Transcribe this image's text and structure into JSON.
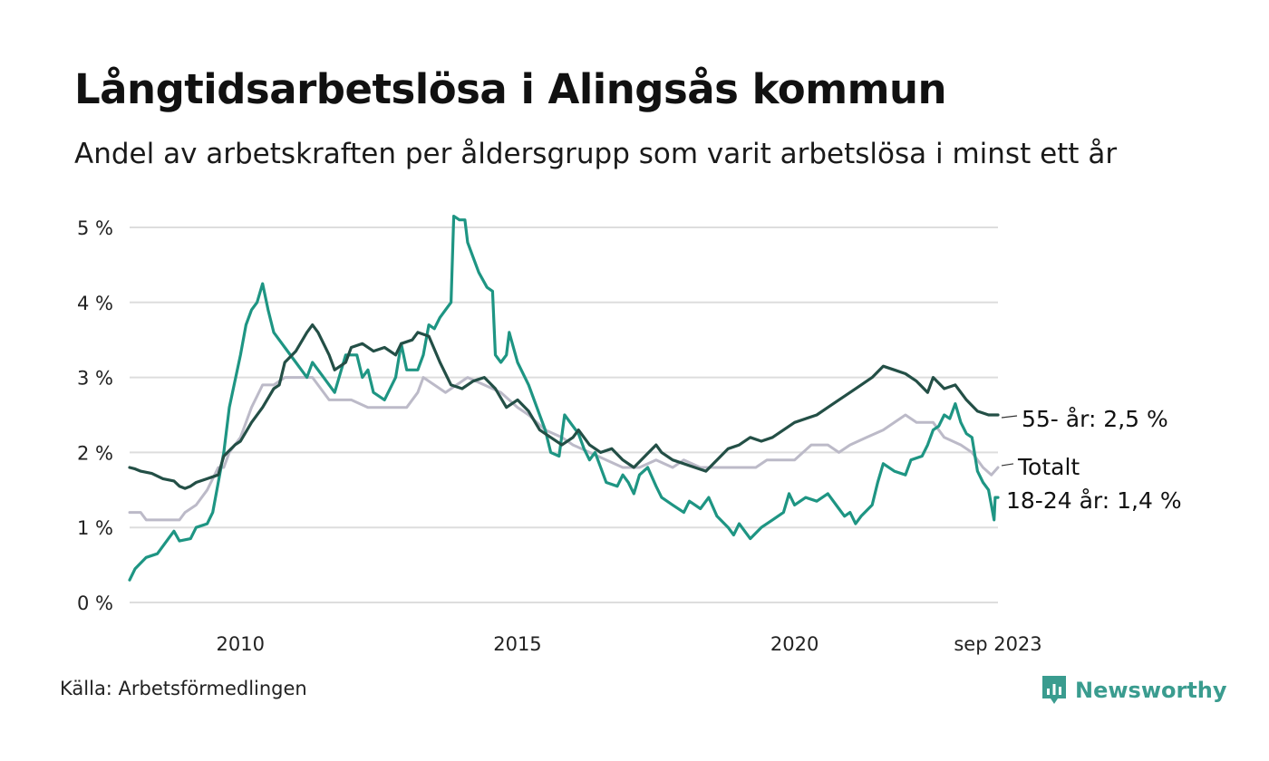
{
  "header": {
    "title": "Långtidsarbetslösa i Alingsås kommun",
    "subtitle": "Andel av arbetskraften per åldersgrupp som varit arbetslösa i minst ett år"
  },
  "footer": {
    "source": "Källa: Arbetsförmedlingen",
    "brand": "Newsworthy"
  },
  "colors": {
    "young": "#1e9583",
    "old": "#234f46",
    "total": "#bcbac8",
    "grid": "#dddddd",
    "brand": "#3a9c8f"
  },
  "chart_data": {
    "type": "line",
    "title": "Långtidsarbetslösa i Alingsås kommun",
    "xlabel": "",
    "ylabel": "",
    "xlim": [
      2008.0,
      2023.67
    ],
    "ylim": [
      0,
      5
    ],
    "yticks": [
      {
        "value": 0,
        "label": "0 %"
      },
      {
        "value": 1,
        "label": "1 %"
      },
      {
        "value": 2,
        "label": "2 %"
      },
      {
        "value": 3,
        "label": "3 %"
      },
      {
        "value": 4,
        "label": "4 %"
      },
      {
        "value": 5,
        "label": "5 %"
      }
    ],
    "xticks": [
      {
        "value": 2010,
        "label": "2010"
      },
      {
        "value": 2015,
        "label": "2015"
      },
      {
        "value": 2020,
        "label": "2020"
      },
      {
        "value": 2023.67,
        "label": "sep 2023"
      }
    ],
    "grid": true,
    "series": [
      {
        "key": "total",
        "name": "Totalt",
        "end_label": "Totalt",
        "color": "#bcbac8",
        "points": [
          [
            2008.0,
            1.2
          ],
          [
            2008.2,
            1.2
          ],
          [
            2008.3,
            1.1
          ],
          [
            2008.6,
            1.1
          ],
          [
            2008.9,
            1.1
          ],
          [
            2009.0,
            1.2
          ],
          [
            2009.2,
            1.3
          ],
          [
            2009.4,
            1.5
          ],
          [
            2009.6,
            1.8
          ],
          [
            2009.7,
            1.8
          ],
          [
            2009.8,
            2.0
          ],
          [
            2010.0,
            2.2
          ],
          [
            2010.2,
            2.6
          ],
          [
            2010.4,
            2.9
          ],
          [
            2010.6,
            2.9
          ],
          [
            2010.8,
            3.0
          ],
          [
            2011.0,
            3.0
          ],
          [
            2011.3,
            3.0
          ],
          [
            2011.6,
            2.7
          ],
          [
            2012.0,
            2.7
          ],
          [
            2012.3,
            2.6
          ],
          [
            2012.7,
            2.6
          ],
          [
            2013.0,
            2.6
          ],
          [
            2013.2,
            2.8
          ],
          [
            2013.3,
            3.0
          ],
          [
            2013.5,
            2.9
          ],
          [
            2013.7,
            2.8
          ],
          [
            2013.9,
            2.9
          ],
          [
            2014.1,
            3.0
          ],
          [
            2014.4,
            2.9
          ],
          [
            2014.7,
            2.8
          ],
          [
            2015.0,
            2.6
          ],
          [
            2015.2,
            2.5
          ],
          [
            2015.5,
            2.3
          ],
          [
            2015.8,
            2.2
          ],
          [
            2016.0,
            2.1
          ],
          [
            2016.3,
            2.0
          ],
          [
            2016.6,
            1.9
          ],
          [
            2016.9,
            1.8
          ],
          [
            2017.2,
            1.8
          ],
          [
            2017.5,
            1.9
          ],
          [
            2017.8,
            1.8
          ],
          [
            2018.0,
            1.9
          ],
          [
            2018.3,
            1.8
          ],
          [
            2018.6,
            1.8
          ],
          [
            2019.0,
            1.8
          ],
          [
            2019.3,
            1.8
          ],
          [
            2019.5,
            1.9
          ],
          [
            2019.8,
            1.9
          ],
          [
            2020.0,
            1.9
          ],
          [
            2020.3,
            2.1
          ],
          [
            2020.6,
            2.1
          ],
          [
            2020.8,
            2.0
          ],
          [
            2021.0,
            2.1
          ],
          [
            2021.3,
            2.2
          ],
          [
            2021.6,
            2.3
          ],
          [
            2021.8,
            2.4
          ],
          [
            2022.0,
            2.5
          ],
          [
            2022.2,
            2.4
          ],
          [
            2022.5,
            2.4
          ],
          [
            2022.7,
            2.2
          ],
          [
            2023.0,
            2.1
          ],
          [
            2023.2,
            2.0
          ],
          [
            2023.4,
            1.8
          ],
          [
            2023.55,
            1.7
          ],
          [
            2023.67,
            1.8
          ]
        ]
      },
      {
        "key": "old",
        "name": "55- år",
        "end_label": "55- år: 2,5 %",
        "color": "#234f46",
        "points": [
          [
            2008.0,
            1.8
          ],
          [
            2008.1,
            1.78
          ],
          [
            2008.2,
            1.75
          ],
          [
            2008.4,
            1.72
          ],
          [
            2008.6,
            1.65
          ],
          [
            2008.8,
            1.62
          ],
          [
            2008.9,
            1.55
          ],
          [
            2009.0,
            1.52
          ],
          [
            2009.1,
            1.55
          ],
          [
            2009.2,
            1.6
          ],
          [
            2009.4,
            1.65
          ],
          [
            2009.6,
            1.7
          ],
          [
            2009.7,
            1.95
          ],
          [
            2009.9,
            2.1
          ],
          [
            2010.0,
            2.15
          ],
          [
            2010.2,
            2.4
          ],
          [
            2010.4,
            2.6
          ],
          [
            2010.6,
            2.85
          ],
          [
            2010.7,
            2.9
          ],
          [
            2010.8,
            3.2
          ],
          [
            2011.0,
            3.35
          ],
          [
            2011.2,
            3.6
          ],
          [
            2011.3,
            3.7
          ],
          [
            2011.4,
            3.6
          ],
          [
            2011.6,
            3.3
          ],
          [
            2011.7,
            3.1
          ],
          [
            2011.9,
            3.2
          ],
          [
            2012.0,
            3.4
          ],
          [
            2012.2,
            3.45
          ],
          [
            2012.4,
            3.35
          ],
          [
            2012.6,
            3.4
          ],
          [
            2012.8,
            3.3
          ],
          [
            2012.9,
            3.45
          ],
          [
            2013.1,
            3.5
          ],
          [
            2013.2,
            3.6
          ],
          [
            2013.4,
            3.55
          ],
          [
            2013.6,
            3.2
          ],
          [
            2013.8,
            2.9
          ],
          [
            2014.0,
            2.85
          ],
          [
            2014.2,
            2.95
          ],
          [
            2014.4,
            3.0
          ],
          [
            2014.6,
            2.85
          ],
          [
            2014.8,
            2.6
          ],
          [
            2015.0,
            2.7
          ],
          [
            2015.2,
            2.55
          ],
          [
            2015.4,
            2.3
          ],
          [
            2015.6,
            2.2
          ],
          [
            2015.8,
            2.1
          ],
          [
            2016.0,
            2.2
          ],
          [
            2016.1,
            2.3
          ],
          [
            2016.3,
            2.1
          ],
          [
            2016.5,
            2.0
          ],
          [
            2016.7,
            2.05
          ],
          [
            2016.9,
            1.9
          ],
          [
            2017.1,
            1.8
          ],
          [
            2017.3,
            1.95
          ],
          [
            2017.5,
            2.1
          ],
          [
            2017.6,
            2.0
          ],
          [
            2017.8,
            1.9
          ],
          [
            2018.0,
            1.85
          ],
          [
            2018.2,
            1.8
          ],
          [
            2018.4,
            1.75
          ],
          [
            2018.6,
            1.9
          ],
          [
            2018.8,
            2.05
          ],
          [
            2019.0,
            2.1
          ],
          [
            2019.2,
            2.2
          ],
          [
            2019.4,
            2.15
          ],
          [
            2019.6,
            2.2
          ],
          [
            2019.8,
            2.3
          ],
          [
            2020.0,
            2.4
          ],
          [
            2020.2,
            2.45
          ],
          [
            2020.4,
            2.5
          ],
          [
            2020.6,
            2.6
          ],
          [
            2020.8,
            2.7
          ],
          [
            2021.0,
            2.8
          ],
          [
            2021.2,
            2.9
          ],
          [
            2021.4,
            3.0
          ],
          [
            2021.6,
            3.15
          ],
          [
            2021.8,
            3.1
          ],
          [
            2022.0,
            3.05
          ],
          [
            2022.2,
            2.95
          ],
          [
            2022.4,
            2.8
          ],
          [
            2022.5,
            3.0
          ],
          [
            2022.7,
            2.85
          ],
          [
            2022.9,
            2.9
          ],
          [
            2023.1,
            2.7
          ],
          [
            2023.3,
            2.55
          ],
          [
            2023.5,
            2.5
          ],
          [
            2023.67,
            2.5
          ]
        ]
      },
      {
        "key": "young",
        "name": "18-24 år",
        "end_label": "18-24 år: 1,4 %",
        "color": "#1e9583",
        "points": [
          [
            2008.0,
            0.3
          ],
          [
            2008.1,
            0.45
          ],
          [
            2008.3,
            0.6
          ],
          [
            2008.5,
            0.65
          ],
          [
            2008.7,
            0.85
          ],
          [
            2008.8,
            0.95
          ],
          [
            2008.9,
            0.82
          ],
          [
            2009.1,
            0.85
          ],
          [
            2009.2,
            1.0
          ],
          [
            2009.4,
            1.05
          ],
          [
            2009.5,
            1.2
          ],
          [
            2009.7,
            2.0
          ],
          [
            2009.8,
            2.6
          ],
          [
            2010.0,
            3.3
          ],
          [
            2010.1,
            3.7
          ],
          [
            2010.2,
            3.9
          ],
          [
            2010.3,
            4.0
          ],
          [
            2010.4,
            4.25
          ],
          [
            2010.5,
            3.9
          ],
          [
            2010.6,
            3.6
          ],
          [
            2010.8,
            3.4
          ],
          [
            2011.0,
            3.2
          ],
          [
            2011.1,
            3.1
          ],
          [
            2011.2,
            3.0
          ],
          [
            2011.3,
            3.2
          ],
          [
            2011.5,
            3.0
          ],
          [
            2011.7,
            2.8
          ],
          [
            2011.9,
            3.3
          ],
          [
            2012.1,
            3.3
          ],
          [
            2012.2,
            3.0
          ],
          [
            2012.3,
            3.1
          ],
          [
            2012.4,
            2.8
          ],
          [
            2012.6,
            2.7
          ],
          [
            2012.8,
            3.0
          ],
          [
            2012.9,
            3.45
          ],
          [
            2013.0,
            3.1
          ],
          [
            2013.2,
            3.1
          ],
          [
            2013.3,
            3.3
          ],
          [
            2013.4,
            3.7
          ],
          [
            2013.5,
            3.65
          ],
          [
            2013.6,
            3.8
          ],
          [
            2013.7,
            3.9
          ],
          [
            2013.8,
            4.0
          ],
          [
            2013.85,
            5.15
          ],
          [
            2013.95,
            5.1
          ],
          [
            2014.05,
            5.1
          ],
          [
            2014.1,
            4.8
          ],
          [
            2014.2,
            4.6
          ],
          [
            2014.3,
            4.4
          ],
          [
            2014.45,
            4.2
          ],
          [
            2014.55,
            4.15
          ],
          [
            2014.6,
            3.3
          ],
          [
            2014.7,
            3.2
          ],
          [
            2014.8,
            3.3
          ],
          [
            2014.85,
            3.6
          ],
          [
            2015.0,
            3.2
          ],
          [
            2015.2,
            2.9
          ],
          [
            2015.35,
            2.6
          ],
          [
            2015.5,
            2.3
          ],
          [
            2015.6,
            2.0
          ],
          [
            2015.75,
            1.95
          ],
          [
            2015.85,
            2.5
          ],
          [
            2016.0,
            2.35
          ],
          [
            2016.1,
            2.25
          ],
          [
            2016.2,
            2.05
          ],
          [
            2016.3,
            1.9
          ],
          [
            2016.4,
            2.0
          ],
          [
            2016.5,
            1.8
          ],
          [
            2016.6,
            1.6
          ],
          [
            2016.8,
            1.55
          ],
          [
            2016.9,
            1.7
          ],
          [
            2017.0,
            1.6
          ],
          [
            2017.1,
            1.45
          ],
          [
            2017.2,
            1.7
          ],
          [
            2017.35,
            1.8
          ],
          [
            2017.5,
            1.55
          ],
          [
            2017.6,
            1.4
          ],
          [
            2017.8,
            1.3
          ],
          [
            2018.0,
            1.2
          ],
          [
            2018.1,
            1.35
          ],
          [
            2018.3,
            1.25
          ],
          [
            2018.45,
            1.4
          ],
          [
            2018.6,
            1.15
          ],
          [
            2018.8,
            1.0
          ],
          [
            2018.9,
            0.9
          ],
          [
            2019.0,
            1.05
          ],
          [
            2019.2,
            0.85
          ],
          [
            2019.4,
            1.0
          ],
          [
            2019.6,
            1.1
          ],
          [
            2019.8,
            1.2
          ],
          [
            2019.9,
            1.45
          ],
          [
            2020.0,
            1.3
          ],
          [
            2020.2,
            1.4
          ],
          [
            2020.4,
            1.35
          ],
          [
            2020.6,
            1.45
          ],
          [
            2020.8,
            1.25
          ],
          [
            2020.9,
            1.15
          ],
          [
            2021.0,
            1.2
          ],
          [
            2021.1,
            1.05
          ],
          [
            2021.2,
            1.15
          ],
          [
            2021.4,
            1.3
          ],
          [
            2021.5,
            1.6
          ],
          [
            2021.6,
            1.85
          ],
          [
            2021.8,
            1.75
          ],
          [
            2022.0,
            1.7
          ],
          [
            2022.1,
            1.9
          ],
          [
            2022.3,
            1.95
          ],
          [
            2022.4,
            2.1
          ],
          [
            2022.5,
            2.3
          ],
          [
            2022.6,
            2.35
          ],
          [
            2022.7,
            2.5
          ],
          [
            2022.8,
            2.45
          ],
          [
            2022.9,
            2.65
          ],
          [
            2023.0,
            2.4
          ],
          [
            2023.1,
            2.25
          ],
          [
            2023.2,
            2.2
          ],
          [
            2023.3,
            1.75
          ],
          [
            2023.4,
            1.6
          ],
          [
            2023.5,
            1.5
          ],
          [
            2023.55,
            1.3
          ],
          [
            2023.6,
            1.1
          ],
          [
            2023.62,
            1.4
          ],
          [
            2023.67,
            1.4
          ]
        ]
      }
    ]
  }
}
